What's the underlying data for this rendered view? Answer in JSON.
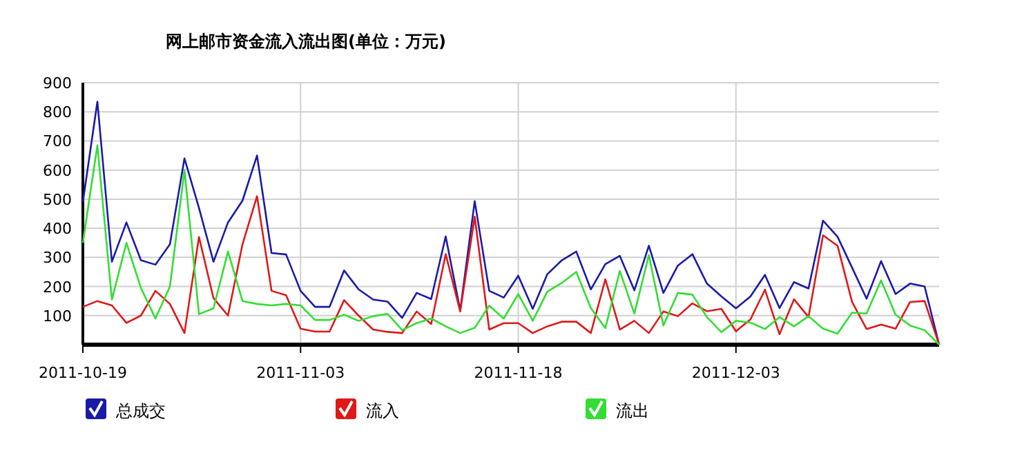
{
  "chart_data": {
    "type": "line",
    "title": "网上邮市资金流入流出图(单位：万元)",
    "x": [
      "2011-10-19",
      "2011-10-20",
      "2011-10-21",
      "2011-10-22",
      "2011-10-23",
      "2011-10-24",
      "2011-10-25",
      "2011-10-26",
      "2011-10-27",
      "2011-10-28",
      "2011-10-29",
      "2011-10-30",
      "2011-10-31",
      "2011-11-01",
      "2011-11-02",
      "2011-11-03",
      "2011-11-04",
      "2011-11-05",
      "2011-11-06",
      "2011-11-07",
      "2011-11-08",
      "2011-11-09",
      "2011-11-10",
      "2011-11-11",
      "2011-11-12",
      "2011-11-13",
      "2011-11-14",
      "2011-11-15",
      "2011-11-16",
      "2011-11-17",
      "2011-11-18",
      "2011-11-19",
      "2011-11-20",
      "2011-11-21",
      "2011-11-22",
      "2011-11-23",
      "2011-11-24",
      "2011-11-25",
      "2011-11-26",
      "2011-11-27",
      "2011-11-28",
      "2011-11-29",
      "2011-11-30",
      "2011-12-01",
      "2011-12-02",
      "2011-12-03",
      "2011-12-04",
      "2011-12-05",
      "2011-12-06",
      "2011-12-07",
      "2011-12-08",
      "2011-12-09",
      "2011-12-10",
      "2011-12-11",
      "2011-12-12",
      "2011-12-13",
      "2011-12-14",
      "2011-12-15",
      "2011-12-16",
      "2011-12-17"
    ],
    "series": [
      {
        "name": "总成交",
        "color": "#1a1aa8",
        "values": [
          490,
          835,
          285,
          420,
          290,
          275,
          345,
          640,
          470,
          285,
          420,
          495,
          650,
          315,
          310,
          185,
          130,
          130,
          255,
          190,
          155,
          148,
          92,
          178,
          157,
          372,
          118,
          493,
          185,
          162,
          237,
          123,
          242,
          290,
          320,
          190,
          277,
          305,
          187,
          340,
          178,
          272,
          311,
          210,
          166,
          125,
          166,
          240,
          126,
          215,
          193,
          426,
          371,
          265,
          158,
          287,
          174,
          210,
          200,
          0
        ]
      },
      {
        "name": "流入",
        "color": "#e01818",
        "values": [
          130,
          150,
          135,
          75,
          100,
          185,
          140,
          40,
          370,
          160,
          100,
          345,
          510,
          185,
          170,
          55,
          45,
          45,
          153,
          100,
          52,
          44,
          40,
          114,
          71,
          311,
          114,
          440,
          52,
          74,
          74,
          40,
          63,
          79,
          79,
          40,
          225,
          52,
          82,
          40,
          114,
          98,
          142,
          115,
          123,
          46,
          87,
          189,
          36,
          156,
          95,
          376,
          340,
          147,
          54,
          69,
          55,
          147,
          150,
          0
        ]
      },
      {
        "name": "流出",
        "color": "#33dd33",
        "values": [
          350,
          685,
          155,
          350,
          195,
          90,
          200,
          600,
          105,
          125,
          320,
          150,
          140,
          135,
          140,
          135,
          85,
          85,
          103,
          82,
          98,
          106,
          50,
          74,
          90,
          63,
          40,
          58,
          134,
          90,
          174,
          82,
          182,
          212,
          250,
          126,
          57,
          253,
          107,
          308,
          66,
          178,
          172,
          95,
          43,
          82,
          76,
          54,
          95,
          63,
          98,
          55,
          38,
          110,
          107,
          221,
          103,
          66,
          50,
          0
        ]
      }
    ],
    "xlim": [
      "2011-10-19",
      "2011-12-17"
    ],
    "xticks": [
      "2011-10-19",
      "2011-11-03",
      "2011-11-18",
      "2011-12-03"
    ],
    "ylim": [
      0,
      900
    ],
    "yticks": [
      100,
      200,
      300,
      400,
      500,
      600,
      700,
      800,
      900
    ],
    "grid": true,
    "legend": "bottom"
  }
}
